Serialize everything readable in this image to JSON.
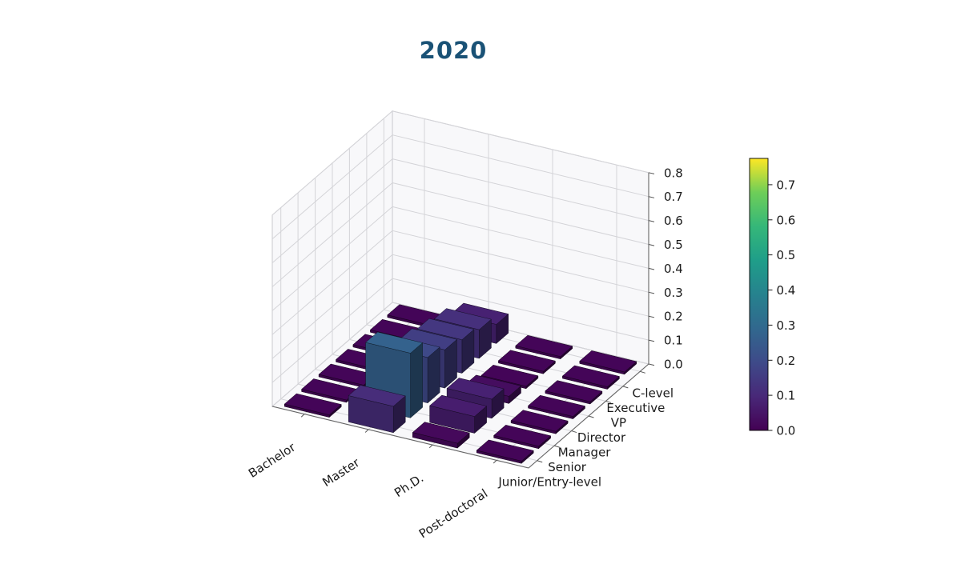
{
  "chart_data": {
    "type": "bar3d",
    "title": "2020",
    "title_color": "#1a5276",
    "x_categories": [
      "Bachelor",
      "Master",
      "Ph.D.",
      "Post-doctoral"
    ],
    "y_categories": [
      "Junior/Entry-level",
      "Senior",
      "Manager",
      "Director",
      "VP",
      "Executive",
      "C-level"
    ],
    "rows_are": "y_categories",
    "cols_are": "x_categories",
    "values": [
      [
        0.01,
        0.11,
        0.02,
        0.01
      ],
      [
        0.01,
        0.27,
        0.07,
        0.01
      ],
      [
        0.01,
        0.19,
        0.08,
        0.01
      ],
      [
        0.01,
        0.16,
        0.03,
        0.01
      ],
      [
        0.01,
        0.14,
        0.01,
        0.01
      ],
      [
        0.01,
        0.12,
        0.01,
        0.01
      ],
      [
        0.01,
        0.08,
        0.01,
        0.01
      ]
    ],
    "zlim": [
      0.0,
      0.8
    ],
    "zticks": [
      0.0,
      0.1,
      0.2,
      0.3,
      0.4,
      0.5,
      0.6,
      0.7,
      0.8
    ],
    "colormap": "viridis",
    "colorbar": {
      "vmin": 0.0,
      "vmax": 0.775,
      "ticks": [
        0.0,
        0.1,
        0.2,
        0.3,
        0.4,
        0.5,
        0.6,
        0.7
      ],
      "position": "right"
    },
    "grid": true,
    "legend": "none"
  }
}
